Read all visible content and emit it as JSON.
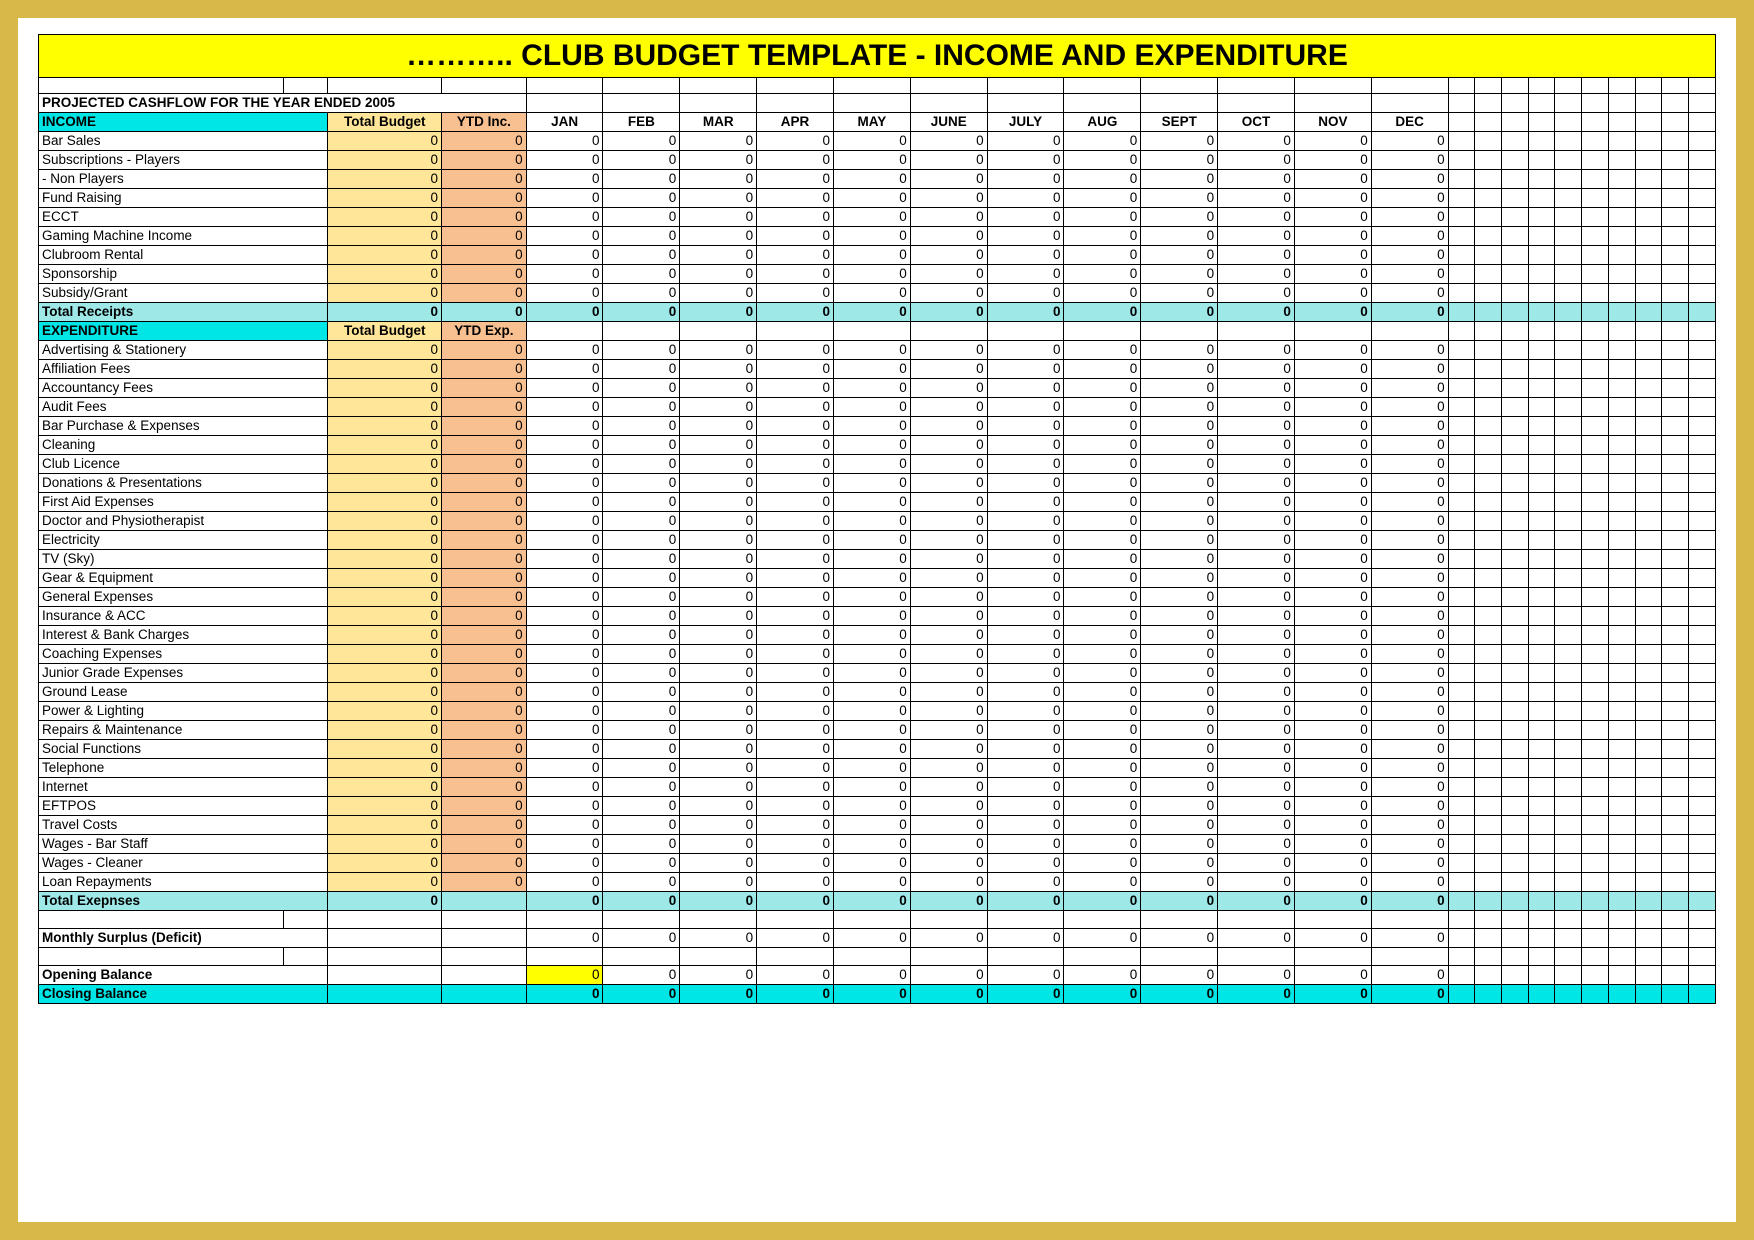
{
  "title": "………..   CLUB BUDGET TEMPLATE - INCOME AND EXPENDITURE",
  "subtitle": "PROJECTED CASHFLOW FOR THE YEAR ENDED 2005",
  "colors": {
    "frame_border": "#d9b84a",
    "title_bg": "#ffff00",
    "section_header_bg": "#00e5e5",
    "total_budget_bg": "#ffe699",
    "ytd_bg": "#f8c090",
    "totals_row_bg": "#9ee8e8",
    "opening_jan_bg": "#ffff00",
    "closing_bg": "#00e5e5",
    "grid": "#000000",
    "text": "#000000"
  },
  "columns": {
    "label_width": 220,
    "budget_width": 102,
    "ytd_width": 76,
    "month_width": 69,
    "months": [
      "JAN",
      "FEB",
      "MAR",
      "APR",
      "MAY",
      "JUNE",
      "JULY",
      "AUG",
      "SEPT",
      "OCT",
      "NOV",
      "DEC"
    ]
  },
  "income": {
    "header": "INCOME",
    "budget_header": "Total Budget",
    "ytd_header": "YTD Inc.",
    "rows": [
      {
        "label": "Bar Sales",
        "budget": 0,
        "ytd": 0,
        "months": [
          0,
          0,
          0,
          0,
          0,
          0,
          0,
          0,
          0,
          0,
          0,
          0
        ]
      },
      {
        "label": "Subscriptions - Players",
        "budget": 0,
        "ytd": 0,
        "months": [
          0,
          0,
          0,
          0,
          0,
          0,
          0,
          0,
          0,
          0,
          0,
          0
        ]
      },
      {
        "label": "             - Non Players",
        "budget": 0,
        "ytd": 0,
        "months": [
          0,
          0,
          0,
          0,
          0,
          0,
          0,
          0,
          0,
          0,
          0,
          0
        ]
      },
      {
        "label": "Fund Raising",
        "budget": 0,
        "ytd": 0,
        "months": [
          0,
          0,
          0,
          0,
          0,
          0,
          0,
          0,
          0,
          0,
          0,
          0
        ]
      },
      {
        "label": "ECCT",
        "budget": 0,
        "ytd": 0,
        "months": [
          0,
          0,
          0,
          0,
          0,
          0,
          0,
          0,
          0,
          0,
          0,
          0
        ]
      },
      {
        "label": "Gaming Machine Income",
        "budget": 0,
        "ytd": 0,
        "months": [
          0,
          0,
          0,
          0,
          0,
          0,
          0,
          0,
          0,
          0,
          0,
          0
        ]
      },
      {
        "label": "Clubroom Rental",
        "budget": 0,
        "ytd": 0,
        "months": [
          0,
          0,
          0,
          0,
          0,
          0,
          0,
          0,
          0,
          0,
          0,
          0
        ]
      },
      {
        "label": "Sponsorship",
        "budget": 0,
        "ytd": 0,
        "months": [
          0,
          0,
          0,
          0,
          0,
          0,
          0,
          0,
          0,
          0,
          0,
          0
        ]
      },
      {
        "label": "Subsidy/Grant",
        "budget": 0,
        "ytd": 0,
        "months": [
          0,
          0,
          0,
          0,
          0,
          0,
          0,
          0,
          0,
          0,
          0,
          0
        ]
      }
    ],
    "total": {
      "label": "Total Receipts",
      "budget": 0,
      "ytd": 0,
      "months": [
        0,
        0,
        0,
        0,
        0,
        0,
        0,
        0,
        0,
        0,
        0,
        0
      ]
    }
  },
  "expenditure": {
    "header": "EXPENDITURE",
    "budget_header": "Total Budget",
    "ytd_header": "YTD Exp.",
    "rows": [
      {
        "label": "Advertising & Stationery",
        "budget": 0,
        "ytd": 0,
        "months": [
          0,
          0,
          0,
          0,
          0,
          0,
          0,
          0,
          0,
          0,
          0,
          0
        ]
      },
      {
        "label": "Affiliation Fees",
        "budget": 0,
        "ytd": 0,
        "months": [
          0,
          0,
          0,
          0,
          0,
          0,
          0,
          0,
          0,
          0,
          0,
          0
        ]
      },
      {
        "label": "Accountancy Fees",
        "budget": 0,
        "ytd": 0,
        "months": [
          0,
          0,
          0,
          0,
          0,
          0,
          0,
          0,
          0,
          0,
          0,
          0
        ]
      },
      {
        "label": "Audit Fees",
        "budget": 0,
        "ytd": 0,
        "months": [
          0,
          0,
          0,
          0,
          0,
          0,
          0,
          0,
          0,
          0,
          0,
          0
        ]
      },
      {
        "label": "Bar Purchase & Expenses",
        "budget": 0,
        "ytd": 0,
        "months": [
          0,
          0,
          0,
          0,
          0,
          0,
          0,
          0,
          0,
          0,
          0,
          0
        ]
      },
      {
        "label": "Cleaning",
        "budget": 0,
        "ytd": 0,
        "months": [
          0,
          0,
          0,
          0,
          0,
          0,
          0,
          0,
          0,
          0,
          0,
          0
        ]
      },
      {
        "label": "Club Licence",
        "budget": 0,
        "ytd": 0,
        "months": [
          0,
          0,
          0,
          0,
          0,
          0,
          0,
          0,
          0,
          0,
          0,
          0
        ]
      },
      {
        "label": "Donations & Presentations",
        "budget": 0,
        "ytd": 0,
        "months": [
          0,
          0,
          0,
          0,
          0,
          0,
          0,
          0,
          0,
          0,
          0,
          0
        ]
      },
      {
        "label": "First Aid Expenses",
        "budget": 0,
        "ytd": 0,
        "months": [
          0,
          0,
          0,
          0,
          0,
          0,
          0,
          0,
          0,
          0,
          0,
          0
        ]
      },
      {
        "label": "Doctor and Physiotherapist",
        "budget": 0,
        "ytd": 0,
        "months": [
          0,
          0,
          0,
          0,
          0,
          0,
          0,
          0,
          0,
          0,
          0,
          0
        ]
      },
      {
        "label": "Electricity",
        "budget": 0,
        "ytd": 0,
        "months": [
          0,
          0,
          0,
          0,
          0,
          0,
          0,
          0,
          0,
          0,
          0,
          0
        ]
      },
      {
        "label": "TV (Sky)",
        "budget": 0,
        "ytd": 0,
        "months": [
          0,
          0,
          0,
          0,
          0,
          0,
          0,
          0,
          0,
          0,
          0,
          0
        ]
      },
      {
        "label": "Gear & Equipment",
        "budget": 0,
        "ytd": 0,
        "months": [
          0,
          0,
          0,
          0,
          0,
          0,
          0,
          0,
          0,
          0,
          0,
          0
        ]
      },
      {
        "label": "General Expenses",
        "budget": 0,
        "ytd": 0,
        "months": [
          0,
          0,
          0,
          0,
          0,
          0,
          0,
          0,
          0,
          0,
          0,
          0
        ]
      },
      {
        "label": "Insurance & ACC",
        "budget": 0,
        "ytd": 0,
        "months": [
          0,
          0,
          0,
          0,
          0,
          0,
          0,
          0,
          0,
          0,
          0,
          0
        ]
      },
      {
        "label": "Interest & Bank Charges",
        "budget": 0,
        "ytd": 0,
        "months": [
          0,
          0,
          0,
          0,
          0,
          0,
          0,
          0,
          0,
          0,
          0,
          0
        ]
      },
      {
        "label": "Coaching Expenses",
        "budget": 0,
        "ytd": 0,
        "months": [
          0,
          0,
          0,
          0,
          0,
          0,
          0,
          0,
          0,
          0,
          0,
          0
        ]
      },
      {
        "label": "Junior Grade Expenses",
        "budget": 0,
        "ytd": 0,
        "months": [
          0,
          0,
          0,
          0,
          0,
          0,
          0,
          0,
          0,
          0,
          0,
          0
        ]
      },
      {
        "label": "Ground Lease",
        "budget": 0,
        "ytd": 0,
        "months": [
          0,
          0,
          0,
          0,
          0,
          0,
          0,
          0,
          0,
          0,
          0,
          0
        ]
      },
      {
        "label": "Power & Lighting",
        "budget": 0,
        "ytd": 0,
        "months": [
          0,
          0,
          0,
          0,
          0,
          0,
          0,
          0,
          0,
          0,
          0,
          0
        ]
      },
      {
        "label": "Repairs & Maintenance",
        "budget": 0,
        "ytd": 0,
        "months": [
          0,
          0,
          0,
          0,
          0,
          0,
          0,
          0,
          0,
          0,
          0,
          0
        ]
      },
      {
        "label": "Social Functions",
        "budget": 0,
        "ytd": 0,
        "months": [
          0,
          0,
          0,
          0,
          0,
          0,
          0,
          0,
          0,
          0,
          0,
          0
        ]
      },
      {
        "label": "Telephone",
        "budget": 0,
        "ytd": 0,
        "months": [
          0,
          0,
          0,
          0,
          0,
          0,
          0,
          0,
          0,
          0,
          0,
          0
        ]
      },
      {
        "label": "Internet",
        "budget": 0,
        "ytd": 0,
        "months": [
          0,
          0,
          0,
          0,
          0,
          0,
          0,
          0,
          0,
          0,
          0,
          0
        ]
      },
      {
        "label": "EFTPOS",
        "budget": 0,
        "ytd": 0,
        "months": [
          0,
          0,
          0,
          0,
          0,
          0,
          0,
          0,
          0,
          0,
          0,
          0
        ]
      },
      {
        "label": "Travel Costs",
        "budget": 0,
        "ytd": 0,
        "months": [
          0,
          0,
          0,
          0,
          0,
          0,
          0,
          0,
          0,
          0,
          0,
          0
        ]
      },
      {
        "label": "Wages - Bar Staff",
        "budget": 0,
        "ytd": 0,
        "months": [
          0,
          0,
          0,
          0,
          0,
          0,
          0,
          0,
          0,
          0,
          0,
          0
        ]
      },
      {
        "label": "Wages - Cleaner",
        "budget": 0,
        "ytd": 0,
        "months": [
          0,
          0,
          0,
          0,
          0,
          0,
          0,
          0,
          0,
          0,
          0,
          0
        ]
      },
      {
        "label": "Loan Repayments",
        "budget": 0,
        "ytd": 0,
        "months": [
          0,
          0,
          0,
          0,
          0,
          0,
          0,
          0,
          0,
          0,
          0,
          0
        ]
      }
    ],
    "total": {
      "label": "Total  Exepnses",
      "budget": 0,
      "months": [
        0,
        0,
        0,
        0,
        0,
        0,
        0,
        0,
        0,
        0,
        0,
        0
      ]
    }
  },
  "summary": {
    "surplus": {
      "label": "Monthly Surplus (Deficit)",
      "months": [
        0,
        0,
        0,
        0,
        0,
        0,
        0,
        0,
        0,
        0,
        0,
        0
      ]
    },
    "opening": {
      "label": "Opening Balance",
      "months": [
        0,
        0,
        0,
        0,
        0,
        0,
        0,
        0,
        0,
        0,
        0,
        0
      ]
    },
    "closing": {
      "label": "Closing Balance",
      "months": [
        0,
        0,
        0,
        0,
        0,
        0,
        0,
        0,
        0,
        0,
        0,
        0
      ]
    }
  }
}
